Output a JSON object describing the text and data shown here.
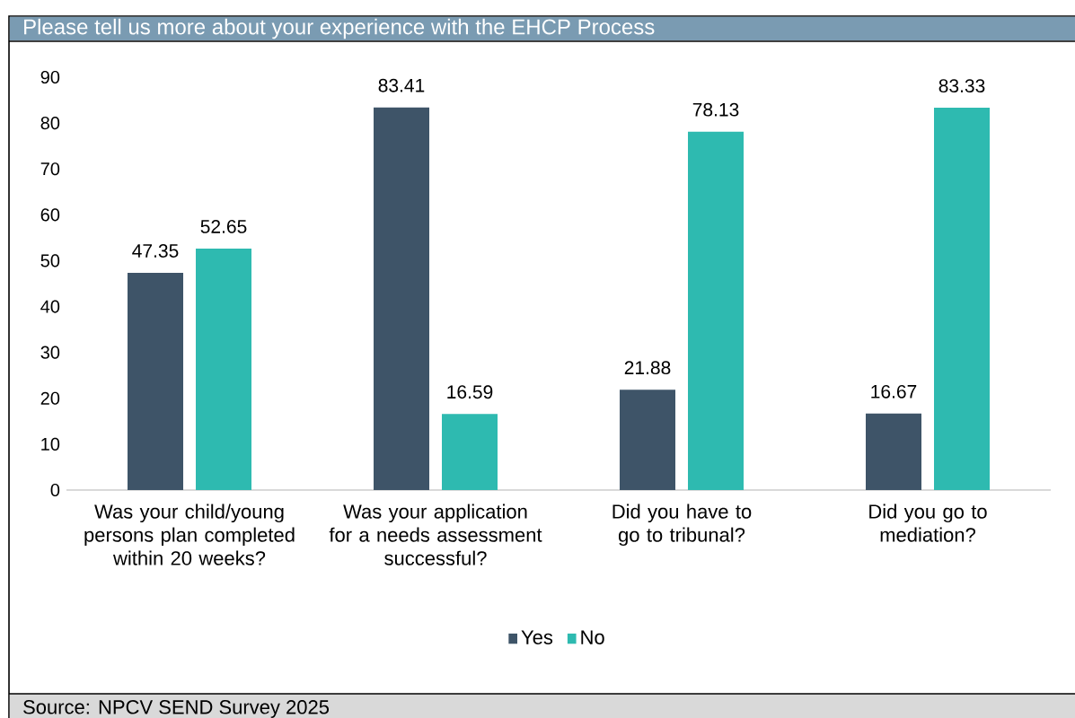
{
  "chart_data": {
    "type": "bar",
    "title": "Please tell us more about your experience with the EHCP Process",
    "categories": [
      "Was your child/young persons plan completed within 20 weeks?",
      "Was your application for a needs assessment successful?",
      "Did you have to go to tribunal?",
      "Did you go to mediation?"
    ],
    "series": [
      {
        "name": "Yes",
        "color": "#3e5468",
        "values": [
          47.35,
          83.41,
          21.88,
          16.67
        ]
      },
      {
        "name": "No",
        "color": "#2ebab0",
        "values": [
          52.65,
          16.59,
          78.13,
          83.33
        ]
      }
    ],
    "ylim": [
      0,
      90
    ],
    "yticks": [
      0,
      10,
      20,
      30,
      40,
      50,
      60,
      70,
      80,
      90
    ],
    "data_labels": true,
    "grid": false,
    "legend": "bottom",
    "annotations": [
      "Source: NPCV SEND Survey 2025"
    ]
  }
}
